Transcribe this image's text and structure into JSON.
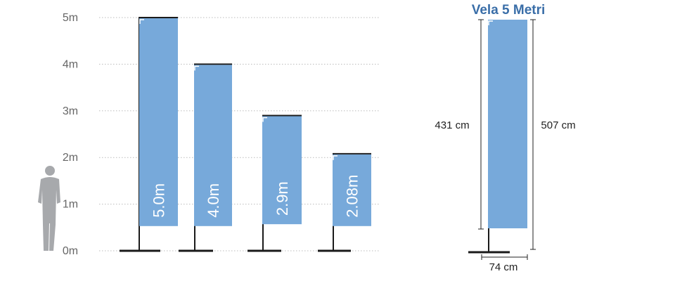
{
  "colors": {
    "flag": "#77a9da",
    "pole": "#1a1a1a",
    "grid": "#bbbbbb",
    "axis_text": "#666666",
    "title": "#3a6ea8",
    "person": "#a7a9ac"
  },
  "chart_data": {
    "type": "diagram",
    "y_axis": {
      "ticks": [
        "5m",
        "4m",
        "3m",
        "2m",
        "1m",
        "0m"
      ],
      "values": [
        5,
        4,
        3,
        2,
        1,
        0
      ],
      "grid": "dotted"
    },
    "flags": [
      {
        "label": "5.0m",
        "height_m": 5.0,
        "flag_bottom_m": 0.53
      },
      {
        "label": "4.0m",
        "height_m": 4.0,
        "flag_bottom_m": 0.53
      },
      {
        "label": "2.9m",
        "height_m": 2.9,
        "flag_bottom_m": 0.57
      },
      {
        "label": "2.08m",
        "height_m": 2.08,
        "flag_bottom_m": 0.53
      }
    ],
    "person_icon": "person-silhouette-icon"
  },
  "detail": {
    "title": "Vela 5 Metri",
    "flag_height": "431 cm",
    "total_height": "507 cm",
    "base_width": "74 cm"
  }
}
